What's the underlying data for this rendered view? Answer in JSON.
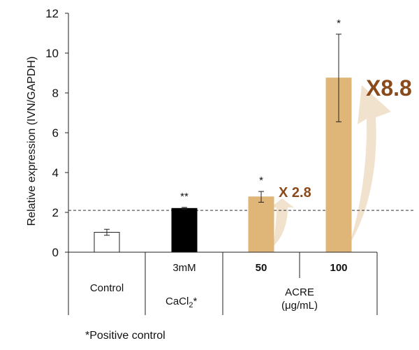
{
  "chart_data": {
    "type": "bar",
    "ylabel": "Relative expression (IVN/GAPDH)",
    "ylim": [
      0,
      12
    ],
    "y_ticks": [
      "0",
      "2",
      "4",
      "6",
      "8",
      "10",
      "12"
    ],
    "reference_line": 2.1,
    "categories": [
      "Control",
      "CaCl2 3mM",
      "ACRE 50",
      "ACRE 100"
    ],
    "values": [
      1.0,
      2.2,
      2.78,
      8.75
    ],
    "errors": [
      0.15,
      0.05,
      0.27,
      2.2
    ],
    "significance": [
      "",
      "**",
      "*",
      "*"
    ],
    "bar_colors": [
      "#ffffff",
      "#000000",
      "#e0b578",
      "#e0b578"
    ],
    "fold_labels": [
      {
        "bar": 2,
        "text": "X 2.8"
      },
      {
        "bar": 3,
        "text": "X8.8"
      }
    ],
    "fold_label_color": "#8a4a1c",
    "arrow_color": "#f1e2cd",
    "table": {
      "control": "Control",
      "cacl2_dose": "3mM",
      "cacl2_name": "CaCl",
      "cacl2_sub": "2",
      "cacl2_mark": "*",
      "acre_dose_1": "50",
      "acre_dose_2": "100",
      "acre_name": "ACRE",
      "acre_unit": "(μg/mL)"
    },
    "footnote": "*Positive control"
  }
}
